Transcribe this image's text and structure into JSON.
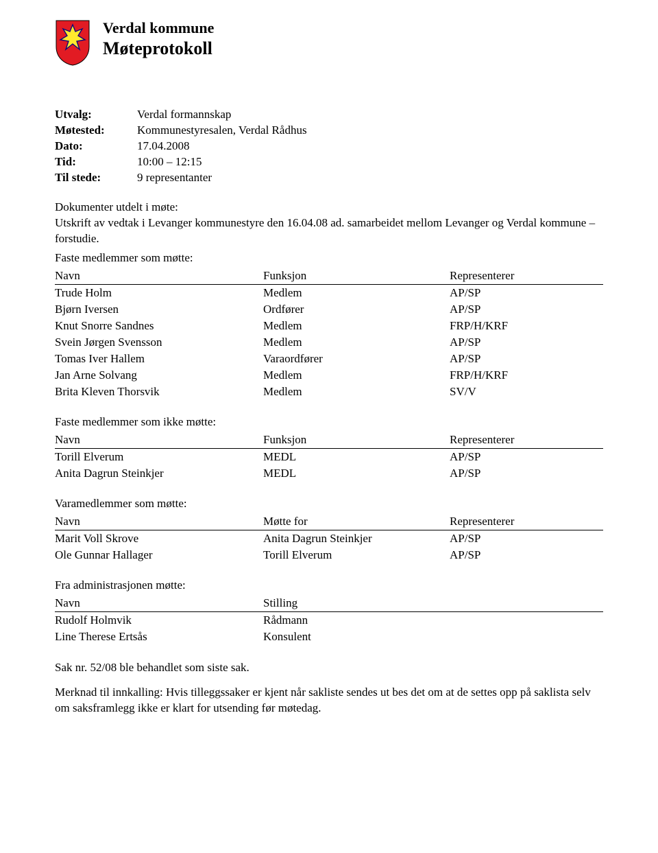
{
  "header": {
    "org": "Verdal kommune",
    "title": "Møteprotokoll"
  },
  "meta": {
    "utvalg_label": "Utvalg:",
    "utvalg_value": "Verdal formannskap",
    "motested_label": "Møtested:",
    "motested_value": "Kommunestyresalen, Verdal Rådhus",
    "dato_label": "Dato:",
    "dato_value": "17.04.2008",
    "tid_label": "Tid:",
    "tid_value": "10:00 – 12:15",
    "tilstede_label": "Til stede:",
    "tilstede_value": "9 representanter"
  },
  "intro": {
    "line1": "Dokumenter utdelt i møte:",
    "line2": "Utskrift av vedtak i Levanger kommunestyre den 16.04.08 ad. samarbeidet mellom Levanger og Verdal kommune – forstudie."
  },
  "sections": {
    "faste_motte": "Faste medlemmer som møtte:",
    "faste_ikke": "Faste medlemmer som ikke møtte:",
    "vara": "Varamedlemmer som møtte:",
    "admin": "Fra administrasjonen møtte:"
  },
  "table_headers": {
    "navn": "Navn",
    "funksjon": "Funksjon",
    "representerer": "Representerer",
    "motte_for": "Møtte for",
    "stilling": "Stilling"
  },
  "faste_motte_rows": [
    {
      "navn": "Trude Holm",
      "funksjon": "Medlem",
      "rep": "AP/SP"
    },
    {
      "navn": "Bjørn Iversen",
      "funksjon": "Ordfører",
      "rep": "AP/SP"
    },
    {
      "navn": "Knut Snorre Sandnes",
      "funksjon": "Medlem",
      "rep": "FRP/H/KRF"
    },
    {
      "navn": "Svein Jørgen Svensson",
      "funksjon": "Medlem",
      "rep": "AP/SP"
    },
    {
      "navn": "Tomas Iver Hallem",
      "funksjon": "Varaordfører",
      "rep": "AP/SP"
    },
    {
      "navn": "Jan Arne Solvang",
      "funksjon": "Medlem",
      "rep": "FRP/H/KRF"
    },
    {
      "navn": "Brita Kleven Thorsvik",
      "funksjon": "Medlem",
      "rep": "SV/V"
    }
  ],
  "faste_ikke_rows": [
    {
      "navn": "Torill Elverum",
      "funksjon": "MEDL",
      "rep": "AP/SP"
    },
    {
      "navn": "Anita Dagrun Steinkjer",
      "funksjon": "MEDL",
      "rep": "AP/SP"
    }
  ],
  "vara_rows": [
    {
      "navn": "Marit Voll Skrove",
      "for": "Anita Dagrun Steinkjer",
      "rep": "AP/SP"
    },
    {
      "navn": "Ole Gunnar Hallager",
      "for": "Torill Elverum",
      "rep": "AP/SP"
    }
  ],
  "admin_rows": [
    {
      "navn": "Rudolf Holmvik",
      "stilling": "Rådmann"
    },
    {
      "navn": "Line Therese Ertsås",
      "stilling": "Konsulent"
    }
  ],
  "closing": {
    "line1": "Sak nr. 52/08 ble behandlet som siste sak.",
    "line2": "Merknad til innkalling: Hvis tilleggssaker er kjent når sakliste sendes ut bes det om at de settes opp på saklista selv om saksframlegg ikke er klart for utsending før møtedag."
  },
  "crest": {
    "shield_fill": "#e21b23",
    "cross_fill": "#ffe92d",
    "cross_stroke": "#0a0a7a"
  }
}
